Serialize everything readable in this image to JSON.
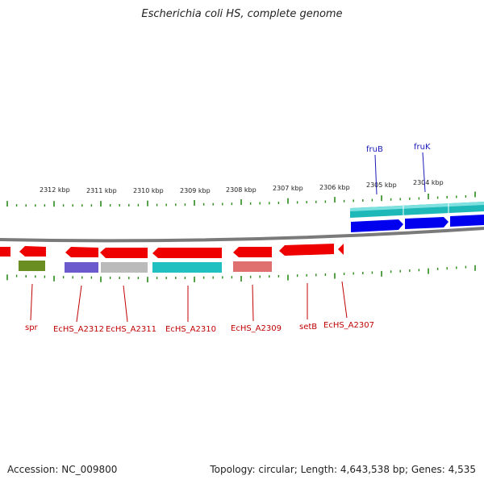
{
  "title": "Escherichia coli HS, complete genome",
  "footer": {
    "accession": "Accession: NC_009800",
    "summary": "Topology: circular; Length: 4,643,538 bp; Genes: 4,535"
  },
  "scale": {
    "labels": [
      "2312 kbp",
      "2311 kbp",
      "2310 kbp",
      "2309 kbp",
      "2308 kbp",
      "2307 kbp",
      "2306 kbp",
      "2305 kbp",
      "2304 kbp"
    ]
  },
  "gene_labels_bottom": [
    "spr",
    "EcHS_A2312",
    "EcHS_A2311",
    "EcHS_A2310",
    "EcHS_A2309",
    "setB",
    "EcHS_A2307"
  ],
  "gene_labels_top": [
    "fruB",
    "fruK"
  ],
  "colors": {
    "forward_cds": "#ff0000",
    "backbone": "#888888",
    "tick": "#2a8a1a",
    "olive": "#6b8e23",
    "slate": "#6a5acd",
    "gray": "#bbbbbb",
    "teal": "#20c0c0",
    "salmon": "#e07070",
    "blue": "#0000ee"
  }
}
